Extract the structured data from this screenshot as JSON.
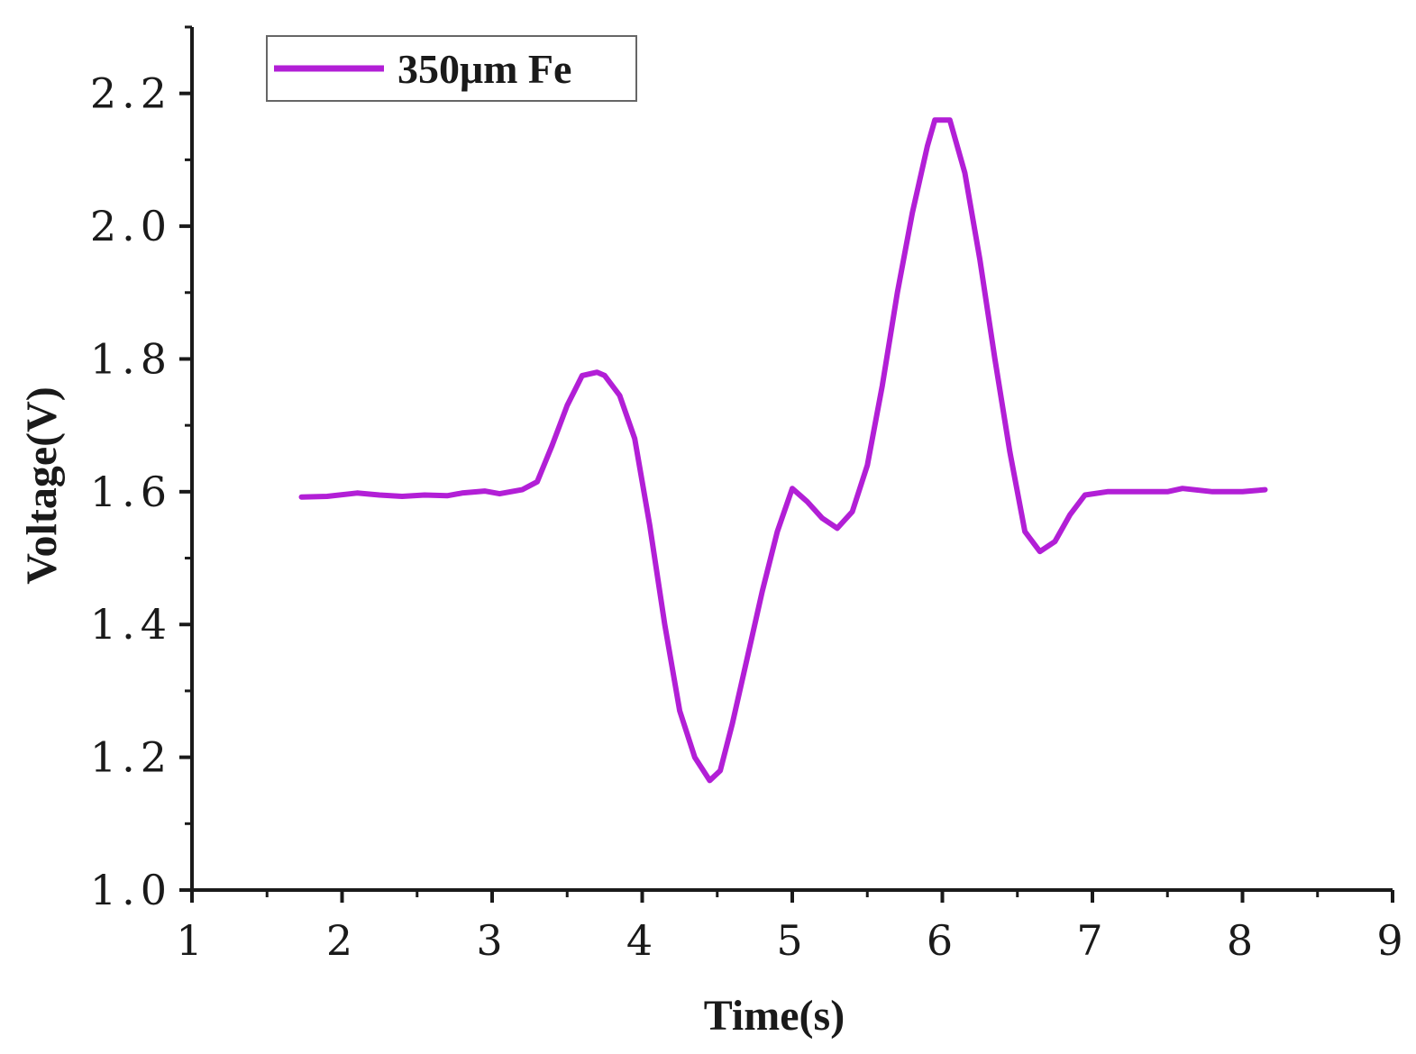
{
  "chart_data": {
    "type": "line",
    "xlabel": "Time(s)",
    "ylabel": "Voltage(V)",
    "xlim": [
      1,
      9
    ],
    "ylim": [
      1.0,
      2.3
    ],
    "x_ticks": [
      1,
      2,
      3,
      4,
      5,
      6,
      7,
      8,
      9
    ],
    "x_tick_labels": [
      "1",
      "2",
      "3",
      "4",
      "5",
      "6",
      "7",
      "8",
      "9"
    ],
    "y_ticks": [
      1.0,
      1.2,
      1.4,
      1.6,
      1.8,
      2.0,
      2.2
    ],
    "y_tick_labels": [
      "1.0",
      "1.2",
      "1.4",
      "1.6",
      "1.8",
      "2.0",
      "2.2"
    ],
    "grid": false,
    "legend_position": "top-left",
    "series": [
      {
        "name": "350μm Fe",
        "color": "#b21fd6",
        "x": [
          1.73,
          1.9,
          2.1,
          2.25,
          2.4,
          2.55,
          2.7,
          2.8,
          2.95,
          3.05,
          3.2,
          3.3,
          3.4,
          3.5,
          3.6,
          3.7,
          3.75,
          3.85,
          3.95,
          4.05,
          4.15,
          4.25,
          4.35,
          4.45,
          4.52,
          4.6,
          4.7,
          4.8,
          4.9,
          5.0,
          5.1,
          5.2,
          5.3,
          5.4,
          5.5,
          5.6,
          5.7,
          5.8,
          5.9,
          5.95,
          6.05,
          6.15,
          6.25,
          6.35,
          6.45,
          6.55,
          6.65,
          6.75,
          6.85,
          6.95,
          7.1,
          7.3,
          7.5,
          7.6,
          7.8,
          8.0,
          8.15
        ],
        "y": [
          1.592,
          1.593,
          1.598,
          1.595,
          1.593,
          1.595,
          1.594,
          1.598,
          1.601,
          1.597,
          1.603,
          1.615,
          1.67,
          1.73,
          1.775,
          1.78,
          1.775,
          1.745,
          1.68,
          1.55,
          1.4,
          1.27,
          1.2,
          1.165,
          1.18,
          1.25,
          1.35,
          1.45,
          1.54,
          1.605,
          1.585,
          1.56,
          1.545,
          1.57,
          1.64,
          1.76,
          1.9,
          2.02,
          2.12,
          2.16,
          2.16,
          2.08,
          1.95,
          1.8,
          1.66,
          1.54,
          1.51,
          1.525,
          1.565,
          1.595,
          1.6,
          1.6,
          1.6,
          1.605,
          1.6,
          1.6,
          1.603
        ]
      }
    ]
  }
}
